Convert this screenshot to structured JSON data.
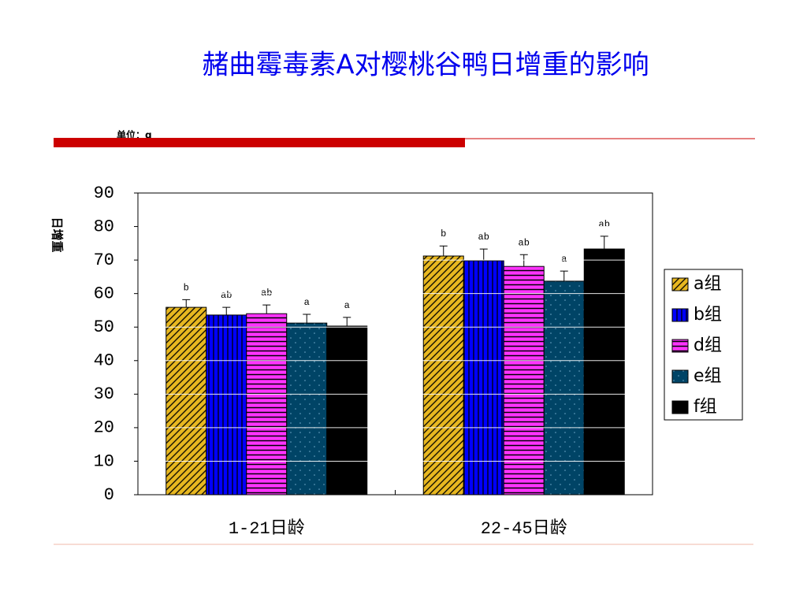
{
  "page": {
    "title": "赭曲霉毒素A对樱桃谷鸭日增重的影响",
    "unit": "单位：g"
  },
  "chart_data": {
    "type": "bar",
    "ylabel": "日增重",
    "categories": [
      "1-21日龄",
      "22-45日龄"
    ],
    "ylim": [
      0,
      90
    ],
    "yticks": [
      0,
      10,
      20,
      30,
      40,
      50,
      60,
      70,
      80,
      90
    ],
    "grid": true,
    "grid_color": "#ffffff",
    "legend": "right",
    "series": [
      {
        "name": "a组",
        "color": "#e8b820",
        "pattern": "diagonal",
        "values": [
          55.9,
          71.2
        ],
        "errors": [
          2.3,
          3.0
        ],
        "labels": [
          "b",
          "b"
        ]
      },
      {
        "name": "b组",
        "color": "#0000ff",
        "pattern": "vertical",
        "values": [
          53.6,
          69.8
        ],
        "errors": [
          2.3,
          3.5
        ],
        "labels": [
          "ab",
          "ab"
        ]
      },
      {
        "name": "d组",
        "color": "#ff33ff",
        "pattern": "horizontal",
        "values": [
          54.0,
          68.1
        ],
        "errors": [
          2.6,
          3.5
        ],
        "labels": [
          "ab",
          "ab"
        ]
      },
      {
        "name": "e组",
        "color": "#004466",
        "pattern": "dots",
        "values": [
          51.2,
          63.7
        ],
        "errors": [
          2.6,
          3.0
        ],
        "labels": [
          "a",
          "a"
        ]
      },
      {
        "name": "f组",
        "color": "#000000",
        "pattern": "solid",
        "values": [
          50.3,
          73.3
        ],
        "errors": [
          2.6,
          3.8
        ],
        "labels": [
          "a",
          "ab"
        ]
      }
    ]
  }
}
